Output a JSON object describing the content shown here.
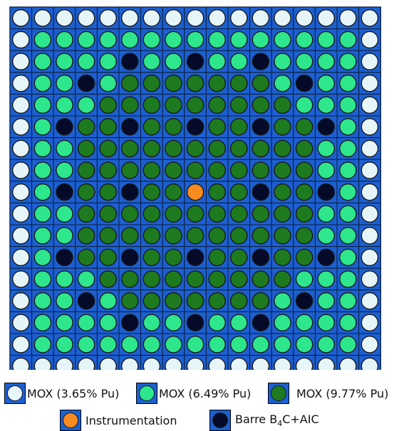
{
  "legend": [
    {
      "key": "L",
      "label": "MOX (3.65% Pu)"
    },
    {
      "key": "M",
      "label": "MOX (6.49% Pu)"
    },
    {
      "key": "H",
      "label": "MOX (9.77% Pu)"
    },
    {
      "key": "I",
      "label": "Instrumentation"
    },
    {
      "key": "R",
      "label_prefix": "Barre B",
      "label_sub": "4",
      "label_suffix": "C+AIC"
    }
  ],
  "colors": {
    "L": "#e6f6f8",
    "M": "#2ee68c",
    "H": "#1e7a1e",
    "I": "#f78b1f",
    "R": "#050a28",
    "cell_background": "#1c5fd1",
    "grid_line": "#0b1e3c"
  },
  "lattice": [
    "LLLLLLLLLLLLLLLLL",
    "LMMMMMMMMMMMMMMML",
    "LMMMMRMMRMMRMMMML",
    "LMMRMHHHHHHHMRMML",
    "LMMMHHHHHHHHHMMML",
    "LMRHHRHHRHHRHHRML",
    "LMMHHHHHHHHHHHMML",
    "LMMHHHHHHHHHHHMML",
    "LMRHHRHHIHHRHHRML",
    "LMMHHHHHHHHHHHMML",
    "LMMHHHHHHHHHHHMML",
    "LMRHHRHHRHHRHHRML",
    "LMMMHHHHHHHHHMMML",
    "LMMRMHHHHHHHMRMML",
    "LMMMMRMMRMMRMMMML",
    "LMMMMMMMMMMMMMMML",
    "LLLLLLLLLLLLLLLLL"
  ]
}
